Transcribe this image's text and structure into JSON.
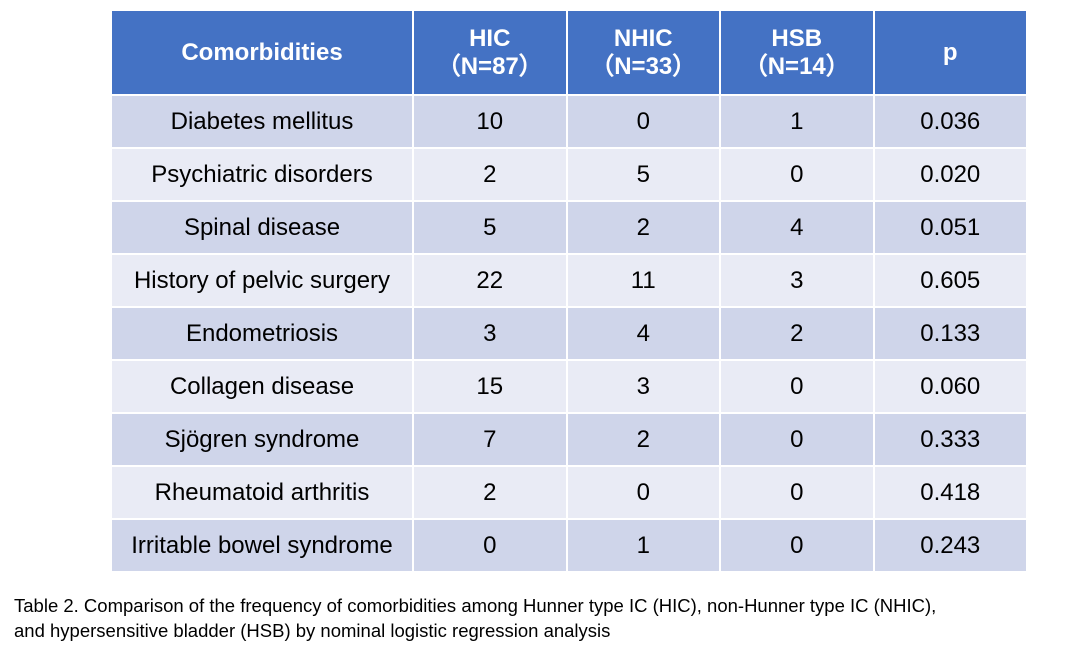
{
  "table": {
    "headers": [
      {
        "label": "Comorbidities",
        "sub": ""
      },
      {
        "label": "HIC",
        "sub": "（N=87）"
      },
      {
        "label": "NHIC",
        "sub": "（N=33）"
      },
      {
        "label": "HSB",
        "sub": "（N=14）"
      },
      {
        "label": "p",
        "sub": ""
      }
    ],
    "rows": [
      [
        "Diabetes mellitus",
        "10",
        "0",
        "1",
        "0.036"
      ],
      [
        "Psychiatric disorders",
        "2",
        "5",
        "0",
        "0.020"
      ],
      [
        "Spinal disease",
        "5",
        "2",
        "4",
        "0.051"
      ],
      [
        "History of pelvic surgery",
        "22",
        "11",
        "3",
        "0.605"
      ],
      [
        "Endometriosis",
        "3",
        "4",
        "2",
        "0.133"
      ],
      [
        "Collagen disease",
        "15",
        "3",
        "0",
        "0.060"
      ],
      [
        "Sjögren syndrome",
        "7",
        "2",
        "0",
        "0.333"
      ],
      [
        "Rheumatoid arthritis",
        "2",
        "0",
        "0",
        "0.418"
      ],
      [
        "Irritable bowel syndrome",
        "0",
        "1",
        "0",
        "0.243"
      ]
    ]
  },
  "caption": {
    "line1": "Table 2. Comparison of the frequency of comorbidities among Hunner type IC (HIC), non-Hunner type IC (NHIC),",
    "line2": "and hypersensitive bladder (HSB) by nominal logistic regression analysis"
  },
  "colors": {
    "header_bg": "#4472C4",
    "row_odd_bg": "#CFD5EA",
    "row_even_bg": "#E9EBF5"
  }
}
